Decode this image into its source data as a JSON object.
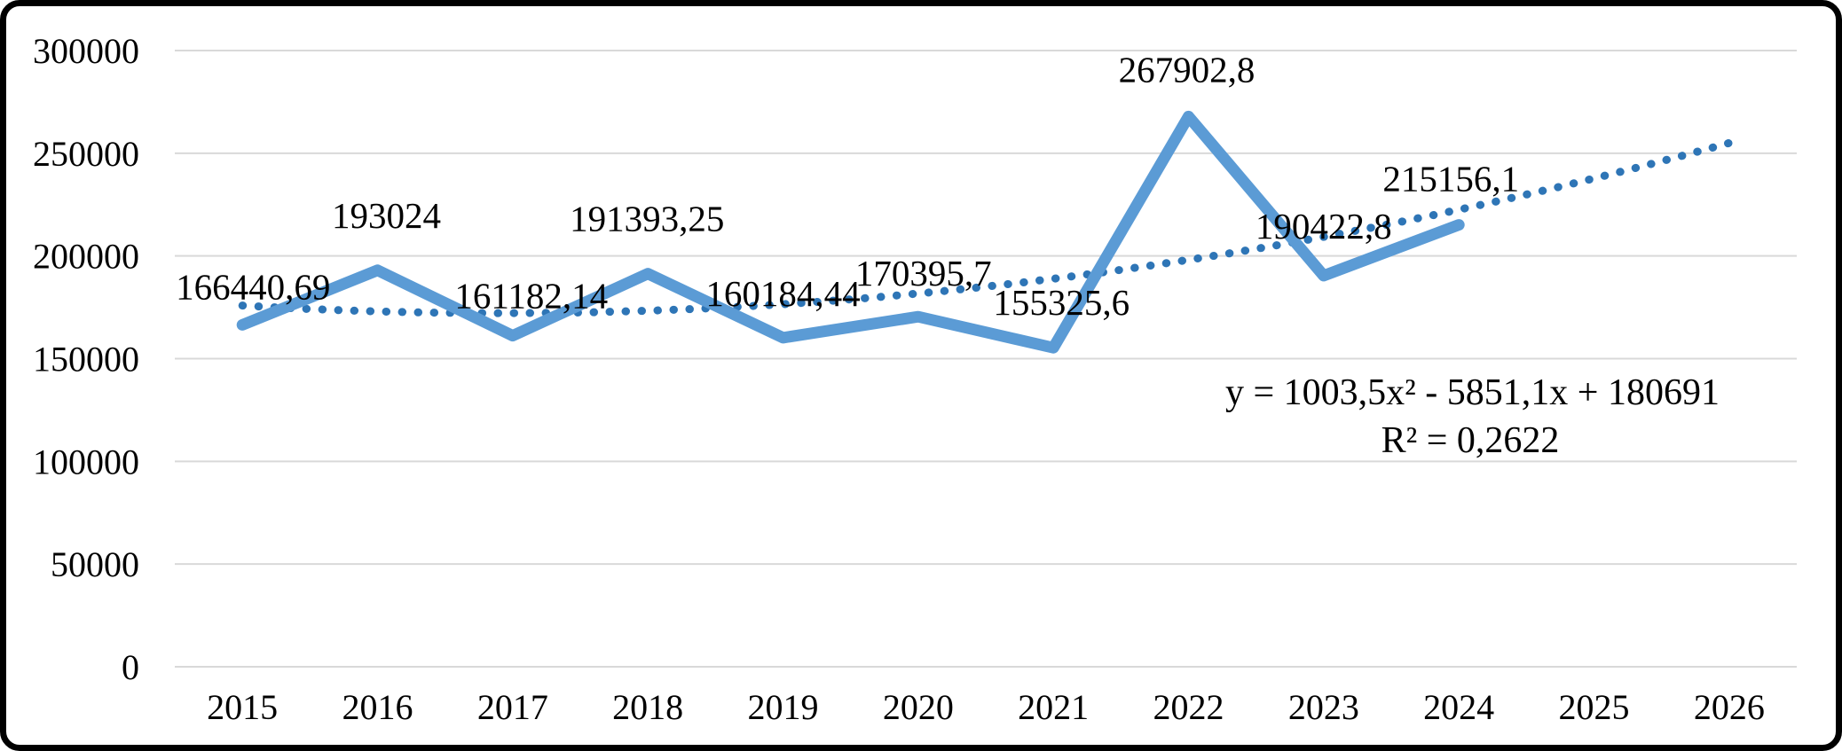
{
  "frame": {
    "background_color": "#ffffff",
    "border_color": "#000000"
  },
  "chart_data": {
    "type": "line",
    "title": "",
    "xlabel": "",
    "ylabel": "",
    "grid": "horizontal-gridlines-on",
    "legend": "none",
    "categories": [
      "2015",
      "2016",
      "2017",
      "2018",
      "2019",
      "2020",
      "2021",
      "2022",
      "2023",
      "2024",
      "2025",
      "2026"
    ],
    "series": [
      {
        "name": "main-series",
        "color": "#5B9BD5",
        "categories_covered": [
          "2015",
          "2016",
          "2017",
          "2018",
          "2019",
          "2020",
          "2021",
          "2022",
          "2023",
          "2024"
        ],
        "values": [
          166440.69,
          193024,
          161182.14,
          191393.25,
          160184.44,
          170395.7,
          155325.6,
          267902.8,
          190422.8,
          215156.1
        ],
        "point_labels": [
          "166440,69",
          "193024",
          "161182,14",
          "191393,25",
          "160184,44",
          "170395,7",
          "155325,6",
          "267902,8",
          "190422,8",
          "215156,1"
        ]
      }
    ],
    "trendline": {
      "style": "dotted",
      "color": "#2E75B6",
      "coefficients": {
        "a": 1003.5,
        "b": -5851.1,
        "c": 180691
      },
      "equation_label": "y = 1003,5x² - 5851,1x + 180691",
      "r_squared_label": "R² = 0,2622",
      "spans_categories": [
        "2015",
        "2026"
      ]
    },
    "ylim": [
      0,
      300000
    ],
    "ytick_step": 50000,
    "yticks": [
      "0",
      "50000",
      "100000",
      "150000",
      "200000",
      "250000",
      "300000"
    ],
    "gridline_color": "#D9D9D9",
    "text_color": "#000000"
  }
}
